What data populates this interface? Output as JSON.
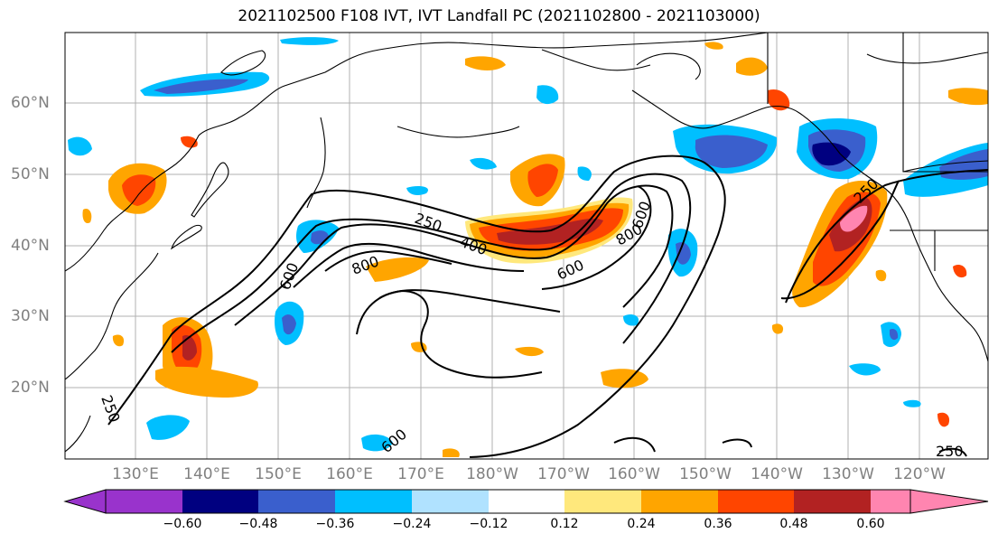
{
  "title": "2021102500 F108 IVT, IVT Landfall PC (2021102800 - 2021103000)",
  "lat_labels": [
    "60°N",
    "50°N",
    "40°N",
    "30°N",
    "20°N"
  ],
  "lon_labels": [
    "130°E",
    "140°E",
    "150°E",
    "160°E",
    "170°E",
    "180°W",
    "170°W",
    "160°W",
    "150°W",
    "140°W",
    "130°W",
    "120°W"
  ],
  "contour_labels": [
    "250",
    "400",
    "600",
    "800",
    "800",
    "600",
    "600",
    "250",
    "600",
    "250",
    "250"
  ],
  "colorbar": {
    "colors": [
      "#9933cc",
      "#000080",
      "#3a5fcd",
      "#00bfff",
      "#b0e2ff",
      "#ffffff",
      "#ffe87c",
      "#ffa500",
      "#ff4500",
      "#b22222",
      "#ff85b0"
    ],
    "tick_labels": [
      "−0.60",
      "−0.48",
      "−0.36",
      "−0.24",
      "−0.12",
      "0.12",
      "0.24",
      "0.36",
      "0.48",
      "0.60"
    ]
  }
}
